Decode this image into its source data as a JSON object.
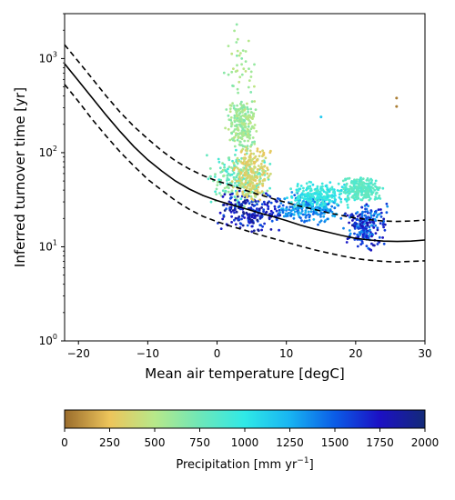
{
  "chart_data": [
    {
      "type": "scatter",
      "xlabel": "Mean air temperature [degC]",
      "ylabel": "Inferred turnover time [yr]",
      "xlim": [
        -22,
        30
      ],
      "ylim": [
        1,
        3000
      ],
      "yscale": "log",
      "xticks": [
        -20,
        -10,
        0,
        10,
        20,
        30
      ],
      "xtick_labels": [
        "−20",
        "−10",
        "0",
        "10",
        "20",
        "30"
      ],
      "yticks": [
        1,
        10,
        100,
        1000
      ],
      "ytick_labels": [
        "10",
        "10",
        "10",
        "10"
      ],
      "ytick_exponents": [
        "0",
        "1",
        "2",
        "3"
      ],
      "grid": false,
      "series": [
        {
          "style": "solid",
          "color": "#000000",
          "x": [
            -22,
            -20,
            -18,
            -16,
            -14,
            -12,
            -10,
            -8,
            -6,
            -4,
            -2,
            0,
            2,
            4,
            6,
            8,
            10,
            12,
            14,
            16,
            18,
            20,
            22,
            24,
            26,
            28,
            30
          ],
          "y": [
            880,
            580,
            380,
            250,
            168,
            116,
            84,
            64,
            50,
            41,
            35,
            31,
            28,
            25.5,
            23,
            21,
            19,
            17,
            15.5,
            14.3,
            13.2,
            12.3,
            11.8,
            11.5,
            11.4,
            11.5,
            11.8
          ]
        },
        {
          "style": "dashed",
          "color": "#000000",
          "x": [
            -22,
            -20,
            -18,
            -16,
            -14,
            -12,
            -10,
            -8,
            -6,
            -4,
            -2,
            0,
            2,
            4,
            6,
            8,
            10,
            12,
            14,
            16,
            18,
            20,
            22,
            24,
            26,
            28,
            30
          ],
          "y": [
            1400,
            930,
            610,
            400,
            270,
            190,
            140,
            105,
            82,
            67,
            57,
            50,
            45,
            40,
            36,
            32.5,
            29.5,
            27,
            25,
            23,
            21.5,
            20.2,
            19.4,
            18.8,
            18.6,
            18.8,
            19.2
          ]
        },
        {
          "style": "dashed",
          "color": "#000000",
          "x": [
            -22,
            -20,
            -18,
            -16,
            -14,
            -12,
            -10,
            -8,
            -6,
            -4,
            -2,
            0,
            2,
            4,
            6,
            8,
            10,
            12,
            14,
            16,
            18,
            20,
            22,
            24,
            26,
            28,
            30
          ],
          "y": [
            530,
            350,
            225,
            150,
            102,
            72,
            52,
            40,
            31,
            25,
            21,
            18.5,
            16.5,
            15,
            13.5,
            12.3,
            11.2,
            10.2,
            9.3,
            8.6,
            8,
            7.5,
            7.2,
            7,
            6.9,
            7,
            7.1
          ]
        }
      ],
      "point_clusters": [
        {
          "x": [
            -2,
            8
          ],
          "y": [
            25,
            110
          ],
          "precip": [
            550,
            950
          ]
        },
        {
          "x": [
            0,
            10
          ],
          "y": [
            14,
            40
          ],
          "precip": [
            1500,
            1950
          ]
        },
        {
          "x": [
            1,
            6
          ],
          "y": [
            100,
            400
          ],
          "precip": [
            450,
            700
          ]
        },
        {
          "x": [
            2,
            8
          ],
          "y": [
            30,
            120
          ],
          "precip": [
            250,
            450
          ]
        },
        {
          "x": [
            8,
            18
          ],
          "y": [
            17,
            40
          ],
          "precip": [
            1200,
            1500
          ]
        },
        {
          "x": [
            10,
            20
          ],
          "y": [
            25,
            50
          ],
          "precip": [
            850,
            1100
          ]
        },
        {
          "x": [
            18,
            25
          ],
          "y": [
            9,
            30
          ],
          "precip": [
            1300,
            1900
          ]
        },
        {
          "x": [
            18,
            24
          ],
          "y": [
            30,
            55
          ],
          "precip": [
            750,
            900
          ]
        },
        {
          "x": [
            0,
            6
          ],
          "y": [
            300,
            2500
          ],
          "precip": [
            450,
            700
          ]
        }
      ],
      "outliers": [
        {
          "x": 25.9,
          "y": 380,
          "precip": 50
        },
        {
          "x": 25.9,
          "y": 310,
          "precip": 50
        },
        {
          "x": 15,
          "y": 240,
          "precip": 1150
        }
      ]
    },
    {
      "type": "colorbar",
      "label_prefix": "Precipitation [mm yr",
      "label_exponent": "−1",
      "label_suffix": "]",
      "range": [
        0,
        2000
      ],
      "ticks": [
        "0",
        "250",
        "500",
        "750",
        "1000",
        "1250",
        "1500",
        "1750",
        "2000"
      ],
      "tick_values": [
        0,
        250,
        500,
        750,
        1000,
        1250,
        1500,
        1750,
        2000
      ],
      "colormap_stops": [
        {
          "v": 0,
          "c": "#9a6c2c"
        },
        {
          "v": 250,
          "c": "#edc55b"
        },
        {
          "v": 500,
          "c": "#b7e88a"
        },
        {
          "v": 750,
          "c": "#6ee7b8"
        },
        {
          "v": 1000,
          "c": "#2fe9e7"
        },
        {
          "v": 1250,
          "c": "#18b4f2"
        },
        {
          "v": 1500,
          "c": "#0b5ce6"
        },
        {
          "v": 1750,
          "c": "#1c10c4"
        },
        {
          "v": 2000,
          "c": "#132a78"
        }
      ]
    }
  ]
}
